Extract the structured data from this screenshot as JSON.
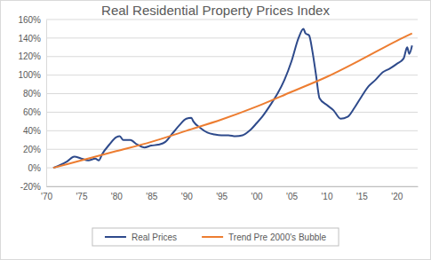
{
  "chart_data": {
    "type": "line",
    "title": "Real Residential Property Prices Index",
    "xlim": [
      1970,
      2023
    ],
    "xticks": [
      {
        "value": 1970,
        "label": "'70"
      },
      {
        "value": 1975,
        "label": "'75"
      },
      {
        "value": 1980,
        "label": "'80"
      },
      {
        "value": 1985,
        "label": "'85"
      },
      {
        "value": 1990,
        "label": "'90"
      },
      {
        "value": 1995,
        "label": "'95"
      },
      {
        "value": 2000,
        "label": "'00"
      },
      {
        "value": 2005,
        "label": "'05"
      },
      {
        "value": 2010,
        "label": "'10"
      },
      {
        "value": 2015,
        "label": "'15"
      },
      {
        "value": 2020,
        "label": "'20"
      }
    ],
    "ylim": [
      -20,
      160
    ],
    "yticks": [
      {
        "value": -20,
        "label": "-20%"
      },
      {
        "value": 0,
        "label": "0%"
      },
      {
        "value": 20,
        "label": "20%"
      },
      {
        "value": 40,
        "label": "40%"
      },
      {
        "value": 60,
        "label": "60%"
      },
      {
        "value": 80,
        "label": "80%"
      },
      {
        "value": 100,
        "label": "100%"
      },
      {
        "value": 120,
        "label": "120%"
      },
      {
        "value": 140,
        "label": "140%"
      },
      {
        "value": 160,
        "label": "160%"
      }
    ],
    "grid": true,
    "legend": "bottom",
    "series": [
      {
        "name": "Real Prices",
        "color": "#2e4a8b",
        "x": [
          1971,
          1972,
          1973,
          1974,
          1975,
          1976,
          1977,
          1977.5,
          1978,
          1979,
          1980,
          1980.5,
          1981,
          1982,
          1983,
          1984,
          1985,
          1986,
          1987,
          1988,
          1989,
          1990,
          1990.7,
          1991,
          1992,
          1993,
          1994,
          1995,
          1996,
          1997,
          1998,
          1999,
          2000,
          2001,
          2002,
          2003,
          2004,
          2005,
          2006,
          2006.7,
          2007,
          2007.5,
          2008,
          2008.5,
          2009,
          2010,
          2011,
          2012,
          2013,
          2014,
          2015,
          2016,
          2017,
          2018,
          2019,
          2020,
          2021,
          2021.5,
          2021.8,
          2022.2
        ],
        "values": [
          0,
          3,
          7,
          12,
          10,
          8,
          10,
          8,
          15,
          25,
          33,
          34,
          30,
          30,
          25,
          22,
          24,
          25,
          28,
          37,
          46,
          53,
          54,
          50,
          43,
          38,
          36,
          35,
          35,
          34,
          35,
          40,
          48,
          57,
          68,
          80,
          95,
          115,
          140,
          150,
          145,
          143,
          125,
          100,
          75,
          68,
          62,
          53,
          55,
          65,
          77,
          88,
          95,
          103,
          107,
          112,
          118,
          130,
          123,
          132
        ]
      },
      {
        "name": "Trend Pre 2000's Bubble",
        "color": "#ed7d31",
        "x": [
          1971,
          1975,
          1980,
          1985,
          1990,
          1995,
          2000,
          2005,
          2010,
          2015,
          2020,
          2022.2
        ],
        "values": [
          0,
          8,
          18,
          28,
          40,
          52,
          66,
          82,
          98,
          117,
          137,
          145
        ]
      }
    ]
  }
}
